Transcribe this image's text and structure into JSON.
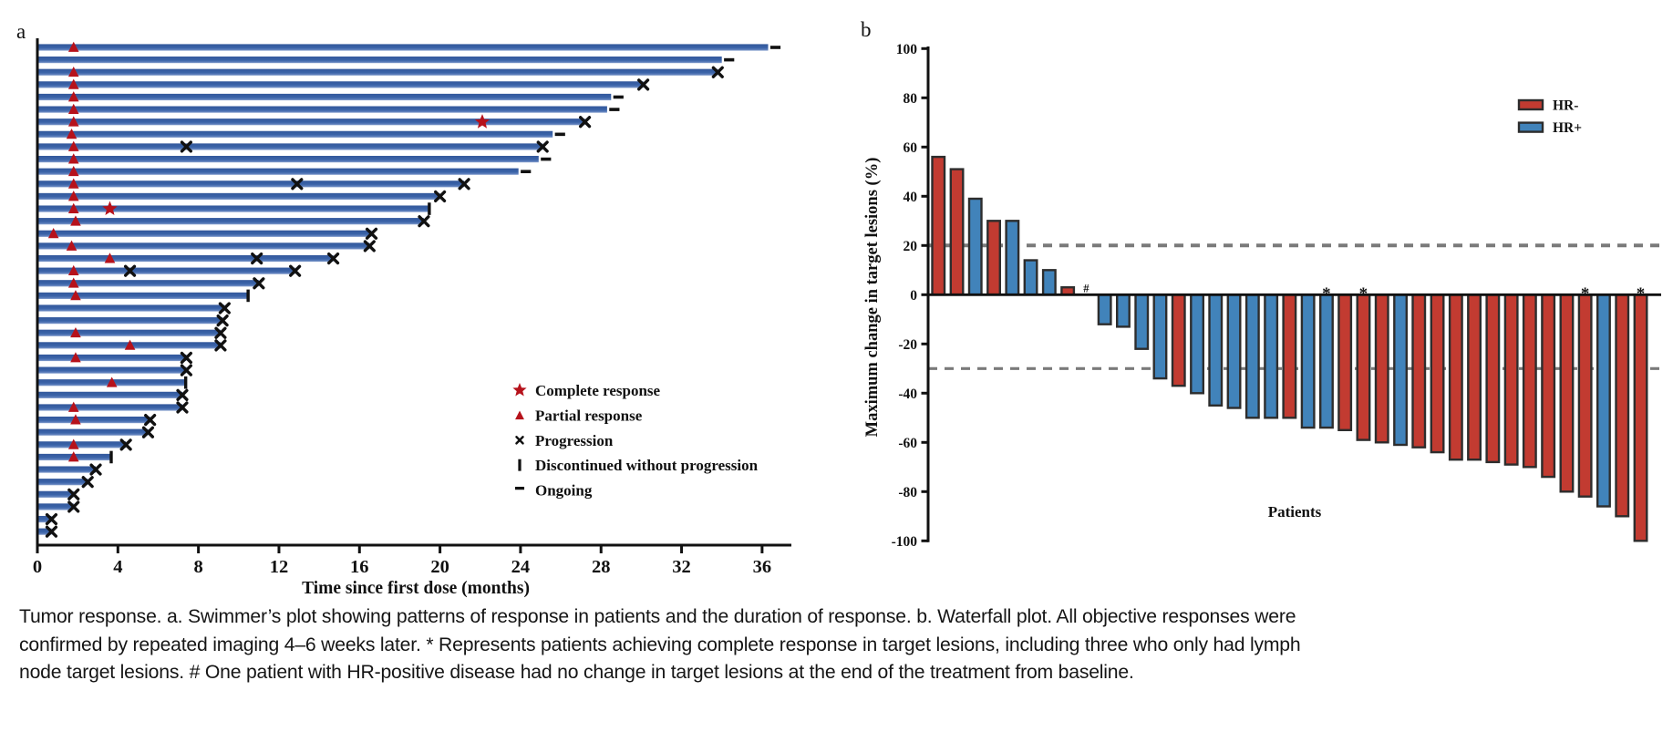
{
  "caption": {
    "lines": [
      "Tumor response. a. Swimmer’s plot showing patterns of response in patients and the duration of response. b. Waterfall plot. All objective responses were",
      "confirmed by repeated imaging 4–6 weeks later. * Represents patients achieving complete response in target lesions, including three who only had lymph",
      "node target lesions. # One patient with HR-positive disease had no change in target lesions at the end of the treatment from baseline."
    ]
  },
  "chart_data": [
    {
      "type": "bar",
      "subtype": "swimmer",
      "panel_label": "a",
      "orientation": "horizontal",
      "xlabel": "Time since first dose (months)",
      "xlim": [
        0,
        37.5
      ],
      "x_ticks": [
        0,
        4,
        8,
        12,
        16,
        20,
        24,
        28,
        32,
        36
      ],
      "grid": false,
      "bar_color": "#3a63a8",
      "bar_color_light": "#8aa3cf",
      "marker_colors": {
        "response_red": "#b6121b",
        "event_black": "#111111"
      },
      "legend_position": "center-right",
      "legend": [
        {
          "marker": "star",
          "label": "Complete response"
        },
        {
          "marker": "triangle",
          "label": "Partial response"
        },
        {
          "marker": "x",
          "label": "Progression"
        },
        {
          "marker": "vbar",
          "label": "Discontinued without progression"
        },
        {
          "marker": "dash",
          "label": "Ongoing"
        }
      ],
      "patients": [
        {
          "duration_months": 36.3,
          "partial_response_month": 1.8,
          "complete_response_month": null,
          "progression_months": [],
          "end": "ongoing"
        },
        {
          "duration_months": 34.0,
          "partial_response_month": null,
          "complete_response_month": null,
          "progression_months": [],
          "end": "ongoing"
        },
        {
          "duration_months": 33.8,
          "partial_response_month": 1.8,
          "complete_response_month": null,
          "progression_months": [],
          "end": "progression"
        },
        {
          "duration_months": 30.1,
          "partial_response_month": 1.8,
          "complete_response_month": null,
          "progression_months": [],
          "end": "progression"
        },
        {
          "duration_months": 28.5,
          "partial_response_month": 1.8,
          "complete_response_month": null,
          "progression_months": [],
          "end": "ongoing"
        },
        {
          "duration_months": 28.3,
          "partial_response_month": 1.8,
          "complete_response_month": null,
          "progression_months": [],
          "end": "ongoing"
        },
        {
          "duration_months": 27.2,
          "partial_response_month": 1.8,
          "complete_response_month": 22.1,
          "progression_months": [],
          "end": "progression"
        },
        {
          "duration_months": 25.6,
          "partial_response_month": 1.7,
          "complete_response_month": null,
          "progression_months": [],
          "end": "ongoing"
        },
        {
          "duration_months": 25.1,
          "partial_response_month": 1.8,
          "complete_response_month": null,
          "progression_months": [
            7.4
          ],
          "end": "progression"
        },
        {
          "duration_months": 24.9,
          "partial_response_month": 1.8,
          "complete_response_month": null,
          "progression_months": [],
          "end": "ongoing"
        },
        {
          "duration_months": 23.9,
          "partial_response_month": 1.8,
          "complete_response_month": null,
          "progression_months": [],
          "end": "ongoing"
        },
        {
          "duration_months": 21.2,
          "partial_response_month": 1.8,
          "complete_response_month": null,
          "progression_months": [
            12.9
          ],
          "end": "progression"
        },
        {
          "duration_months": 20.0,
          "partial_response_month": 1.8,
          "complete_response_month": null,
          "progression_months": [],
          "end": "progression"
        },
        {
          "duration_months": 19.4,
          "partial_response_month": 1.8,
          "complete_response_month": 3.6,
          "progression_months": [],
          "end": "discontinued"
        },
        {
          "duration_months": 19.2,
          "partial_response_month": 1.9,
          "complete_response_month": null,
          "progression_months": [],
          "end": "progression"
        },
        {
          "duration_months": 16.6,
          "partial_response_month": 0.8,
          "complete_response_month": null,
          "progression_months": [],
          "end": "progression"
        },
        {
          "duration_months": 16.5,
          "partial_response_month": 1.7,
          "complete_response_month": null,
          "progression_months": [],
          "end": "progression"
        },
        {
          "duration_months": 14.7,
          "partial_response_month": 3.6,
          "complete_response_month": null,
          "progression_months": [
            10.9
          ],
          "end": "progression"
        },
        {
          "duration_months": 12.8,
          "partial_response_month": 1.8,
          "complete_response_month": null,
          "progression_months": [
            4.6
          ],
          "end": "progression"
        },
        {
          "duration_months": 11.0,
          "partial_response_month": 1.8,
          "complete_response_month": null,
          "progression_months": [],
          "end": "progression"
        },
        {
          "duration_months": 10.4,
          "partial_response_month": 1.9,
          "complete_response_month": null,
          "progression_months": [],
          "end": "discontinued"
        },
        {
          "duration_months": 9.3,
          "partial_response_month": null,
          "complete_response_month": null,
          "progression_months": [],
          "end": "progression"
        },
        {
          "duration_months": 9.2,
          "partial_response_month": null,
          "complete_response_month": null,
          "progression_months": [],
          "end": "progression"
        },
        {
          "duration_months": 9.1,
          "partial_response_month": 1.9,
          "complete_response_month": null,
          "progression_months": [],
          "end": "progression"
        },
        {
          "duration_months": 9.1,
          "partial_response_month": 4.6,
          "complete_response_month": null,
          "progression_months": [],
          "end": "progression"
        },
        {
          "duration_months": 7.4,
          "partial_response_month": 1.9,
          "complete_response_month": null,
          "progression_months": [],
          "end": "progression"
        },
        {
          "duration_months": 7.4,
          "partial_response_month": null,
          "complete_response_month": null,
          "progression_months": [],
          "end": "progression"
        },
        {
          "duration_months": 7.3,
          "partial_response_month": 3.7,
          "complete_response_month": null,
          "progression_months": [],
          "end": "discontinued"
        },
        {
          "duration_months": 7.2,
          "partial_response_month": null,
          "complete_response_month": null,
          "progression_months": [],
          "end": "progression"
        },
        {
          "duration_months": 7.2,
          "partial_response_month": 1.8,
          "complete_response_month": null,
          "progression_months": [],
          "end": "progression"
        },
        {
          "duration_months": 5.6,
          "partial_response_month": 1.9,
          "complete_response_month": null,
          "progression_months": [],
          "end": "progression"
        },
        {
          "duration_months": 5.5,
          "partial_response_month": null,
          "complete_response_month": null,
          "progression_months": [],
          "end": "progression"
        },
        {
          "duration_months": 4.4,
          "partial_response_month": 1.8,
          "complete_response_month": null,
          "progression_months": [],
          "end": "progression"
        },
        {
          "duration_months": 3.6,
          "partial_response_month": 1.8,
          "complete_response_month": null,
          "progression_months": [],
          "end": "discontinued"
        },
        {
          "duration_months": 2.9,
          "partial_response_month": null,
          "complete_response_month": null,
          "progression_months": [],
          "end": "progression"
        },
        {
          "duration_months": 2.5,
          "partial_response_month": null,
          "complete_response_month": null,
          "progression_months": [],
          "end": "progression"
        },
        {
          "duration_months": 1.8,
          "partial_response_month": null,
          "complete_response_month": null,
          "progression_months": [],
          "end": "progression"
        },
        {
          "duration_months": 1.8,
          "partial_response_month": null,
          "complete_response_month": null,
          "progression_months": [],
          "end": "progression"
        },
        {
          "duration_months": 0.7,
          "partial_response_month": null,
          "complete_response_month": null,
          "progression_months": [],
          "end": "progression"
        },
        {
          "duration_months": 0.7,
          "partial_response_month": null,
          "complete_response_month": null,
          "progression_months": [],
          "end": "progression"
        }
      ]
    },
    {
      "type": "bar",
      "subtype": "waterfall",
      "panel_label": "b",
      "orientation": "vertical",
      "xlabel": "Patients",
      "ylabel": "Maximum change in target lesions (%)",
      "ylim": [
        -100,
        100
      ],
      "y_ticks": [
        100,
        80,
        60,
        40,
        20,
        0,
        -20,
        -40,
        -60,
        -80,
        -100
      ],
      "grid": false,
      "reference_lines": [
        {
          "value": 20,
          "style": "dashed",
          "color": "#7a7a7a"
        },
        {
          "value": -30,
          "style": "dashed",
          "color": "#7a7a7a"
        }
      ],
      "legend_position": "top-right",
      "legend": [
        {
          "label": "HR-",
          "color": "#c23b31"
        },
        {
          "label": "HR+",
          "color": "#4183ba"
        }
      ],
      "bar_outline": "#2d2d2d",
      "bars": [
        {
          "value": 56,
          "group": "HR-",
          "annotation": null
        },
        {
          "value": 51,
          "group": "HR-",
          "annotation": null
        },
        {
          "value": 39,
          "group": "HR+",
          "annotation": null
        },
        {
          "value": 30,
          "group": "HR-",
          "annotation": null
        },
        {
          "value": 30,
          "group": "HR+",
          "annotation": null
        },
        {
          "value": 14,
          "group": "HR+",
          "annotation": null
        },
        {
          "value": 10,
          "group": "HR+",
          "annotation": null
        },
        {
          "value": 3,
          "group": "HR-",
          "annotation": null
        },
        {
          "value": 0,
          "group": "HR+",
          "annotation": "#"
        },
        {
          "value": -12,
          "group": "HR+",
          "annotation": null
        },
        {
          "value": -13,
          "group": "HR+",
          "annotation": null
        },
        {
          "value": -22,
          "group": "HR+",
          "annotation": null
        },
        {
          "value": -34,
          "group": "HR+",
          "annotation": null
        },
        {
          "value": -37,
          "group": "HR-",
          "annotation": null
        },
        {
          "value": -40,
          "group": "HR+",
          "annotation": null
        },
        {
          "value": -45,
          "group": "HR+",
          "annotation": null
        },
        {
          "value": -46,
          "group": "HR+",
          "annotation": null
        },
        {
          "value": -50,
          "group": "HR+",
          "annotation": null
        },
        {
          "value": -50,
          "group": "HR+",
          "annotation": null
        },
        {
          "value": -50,
          "group": "HR-",
          "annotation": null
        },
        {
          "value": -54,
          "group": "HR+",
          "annotation": null
        },
        {
          "value": -54,
          "group": "HR+",
          "annotation": "*"
        },
        {
          "value": -55,
          "group": "HR-",
          "annotation": null
        },
        {
          "value": -59,
          "group": "HR-",
          "annotation": "*"
        },
        {
          "value": -60,
          "group": "HR-",
          "annotation": null
        },
        {
          "value": -61,
          "group": "HR+",
          "annotation": null
        },
        {
          "value": -62,
          "group": "HR-",
          "annotation": null
        },
        {
          "value": -64,
          "group": "HR-",
          "annotation": null
        },
        {
          "value": -67,
          "group": "HR-",
          "annotation": null
        },
        {
          "value": -67,
          "group": "HR-",
          "annotation": null
        },
        {
          "value": -68,
          "group": "HR-",
          "annotation": null
        },
        {
          "value": -69,
          "group": "HR-",
          "annotation": null
        },
        {
          "value": -70,
          "group": "HR-",
          "annotation": null
        },
        {
          "value": -74,
          "group": "HR-",
          "annotation": null
        },
        {
          "value": -80,
          "group": "HR-",
          "annotation": null
        },
        {
          "value": -82,
          "group": "HR-",
          "annotation": "*"
        },
        {
          "value": -86,
          "group": "HR+",
          "annotation": null
        },
        {
          "value": -90,
          "group": "HR-",
          "annotation": null
        },
        {
          "value": -100,
          "group": "HR-",
          "annotation": "*"
        }
      ]
    }
  ]
}
